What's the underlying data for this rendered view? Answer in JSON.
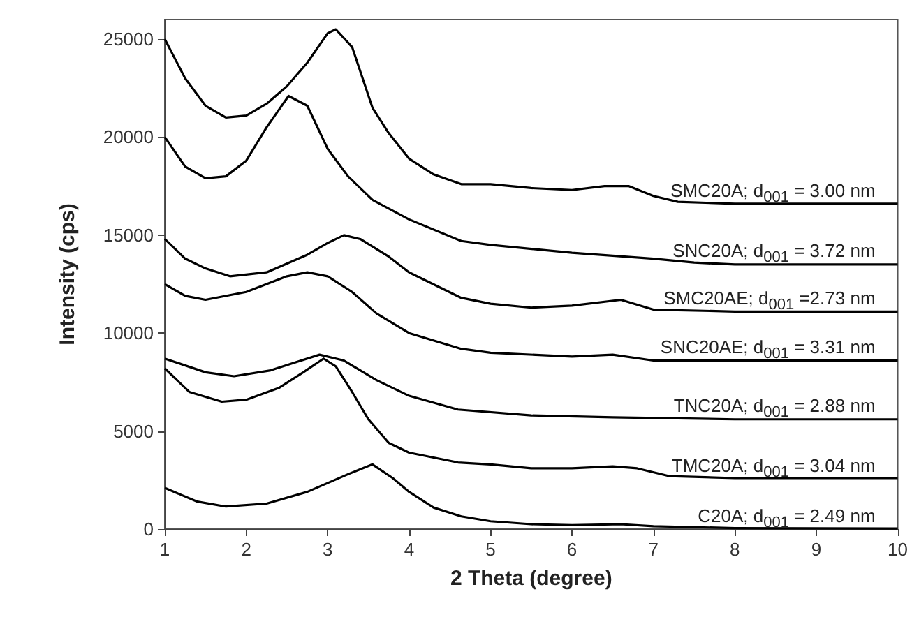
{
  "chart_data": {
    "type": "line",
    "xlabel": "2 Theta (degree)",
    "ylabel": "Intensity (cps)",
    "xlim": [
      1,
      10
    ],
    "xticks": [
      1,
      2,
      3,
      4,
      5,
      6,
      7,
      8,
      9,
      10
    ],
    "ylim": [
      0,
      26000
    ],
    "yticks": [
      0,
      5000,
      10000,
      15000,
      20000,
      25000
    ],
    "grid": false,
    "legend": false,
    "series": [
      {
        "name": "SMC20A; d$_{001}$ = 3.00 nm",
        "color": "#000000",
        "x": [
          1,
          1.25,
          1.5,
          1.75,
          2,
          2.25,
          2.5,
          2.75,
          3,
          3.1,
          3.3,
          3.55,
          3.75,
          4,
          4.3,
          4.64,
          5,
          5.5,
          6,
          6.4,
          6.7,
          7,
          7.3,
          8,
          10
        ],
        "values": [
          25000,
          23000,
          21600,
          21000,
          21100,
          21700,
          22600,
          23800,
          25300,
          25500,
          24600,
          21500,
          20200,
          18900,
          18100,
          17600,
          17600,
          17400,
          17300,
          17500,
          17500,
          17000,
          16700,
          16600,
          16600
        ]
      },
      {
        "name": "SNC20A; d$_{001}$ = 3.72 nm",
        "color": "#000000",
        "x": [
          1,
          1.25,
          1.5,
          1.75,
          2,
          2.25,
          2.52,
          2.75,
          3,
          3.25,
          3.55,
          4,
          4.64,
          5,
          6,
          7,
          7.5,
          8,
          10
        ],
        "values": [
          20000,
          18500,
          17900,
          18000,
          18800,
          20500,
          22100,
          21600,
          19400,
          18000,
          16800,
          15800,
          14700,
          14500,
          14100,
          13800,
          13600,
          13500,
          13500
        ]
      },
      {
        "name": "SMC20AE; d$_{001}$ =2.73 nm",
        "color": "#000000",
        "x": [
          1,
          1.25,
          1.5,
          1.8,
          2.25,
          2.75,
          3,
          3.2,
          3.4,
          3.75,
          4,
          4.64,
          5,
          5.5,
          6,
          6.6,
          7,
          8,
          10
        ],
        "values": [
          14800,
          13800,
          13300,
          12900,
          13100,
          14000,
          14600,
          15000,
          14800,
          13900,
          13100,
          11800,
          11500,
          11300,
          11400,
          11700,
          11200,
          11100,
          11100
        ]
      },
      {
        "name": "SNC20AE; d$_{001}$ = 3.31 nm",
        "color": "#000000",
        "x": [
          1,
          1.25,
          1.5,
          2,
          2.5,
          2.75,
          3,
          3.3,
          3.6,
          4,
          4.64,
          5,
          6,
          6.5,
          7,
          8,
          10
        ],
        "values": [
          12500,
          11900,
          11700,
          12100,
          12900,
          13100,
          12900,
          12100,
          11000,
          10000,
          9200,
          9000,
          8800,
          8900,
          8600,
          8600,
          8600
        ]
      },
      {
        "name": "TNC20A; d$_{001}$ = 2.88 nm",
        "color": "#000000",
        "x": [
          1,
          1.5,
          1.85,
          2.3,
          2.6,
          2.9,
          3.2,
          3.6,
          4,
          4.6,
          5.5,
          6.5,
          8,
          10
        ],
        "values": [
          8700,
          8000,
          7800,
          8100,
          8500,
          8900,
          8600,
          7600,
          6800,
          6100,
          5800,
          5700,
          5600,
          5600
        ]
      },
      {
        "name": "TMC20A; d$_{001}$ = 3.04 nm",
        "color": "#000000",
        "x": [
          1,
          1.3,
          1.7,
          2,
          2.4,
          2.7,
          2.95,
          3.1,
          3.3,
          3.5,
          3.75,
          4,
          4.6,
          5,
          5.5,
          6,
          6.5,
          6.8,
          7.2,
          8,
          10
        ],
        "values": [
          8200,
          7000,
          6500,
          6600,
          7200,
          8000,
          8700,
          8300,
          7000,
          5600,
          4400,
          3900,
          3400,
          3300,
          3100,
          3100,
          3200,
          3100,
          2700,
          2600,
          2600
        ]
      },
      {
        "name": "C20A; d$_{001}$ = 2.49 nm",
        "color": "#000000",
        "x": [
          1,
          1.4,
          1.75,
          2.25,
          2.75,
          3.25,
          3.55,
          3.8,
          4,
          4.3,
          4.64,
          5,
          5.5,
          6,
          6.6,
          7,
          8,
          10
        ],
        "values": [
          2100,
          1400,
          1150,
          1300,
          1900,
          2800,
          3300,
          2600,
          1900,
          1100,
          650,
          400,
          250,
          200,
          250,
          150,
          50,
          30
        ]
      }
    ]
  }
}
